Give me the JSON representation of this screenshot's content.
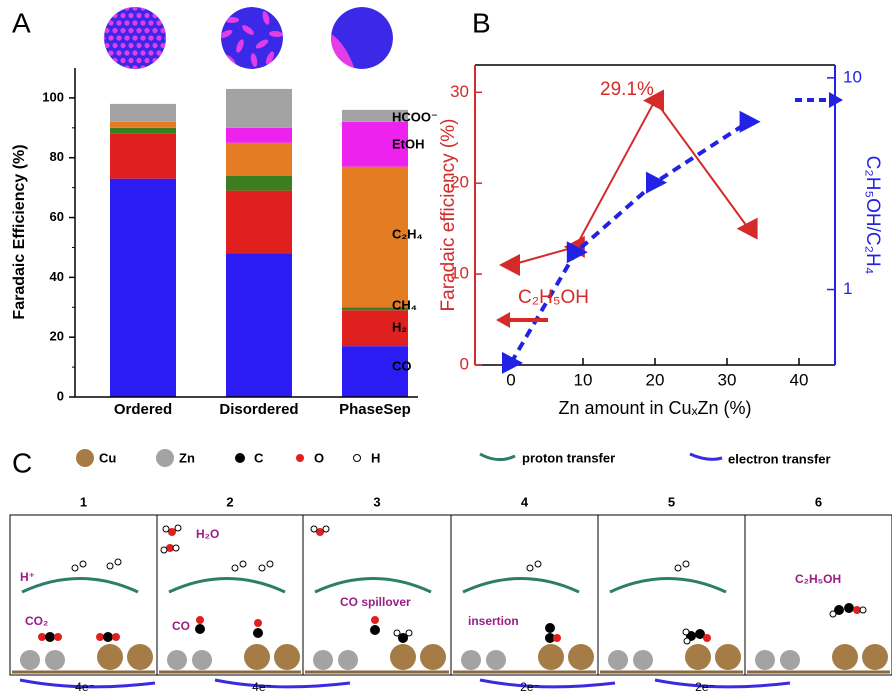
{
  "panel_labels": [
    "A",
    "B",
    "C"
  ],
  "chart_data": [
    {
      "type": "bar",
      "stacked": true,
      "y_label": "Faradaic Efficiency (%)",
      "categories": [
        "Ordered",
        "Disordered",
        "PhaseSep"
      ],
      "series": [
        {
          "name": "CO",
          "color": "#2a1cf2",
          "values": [
            73,
            48,
            17
          ]
        },
        {
          "name": "H₂",
          "color": "#e0201e",
          "values": [
            15,
            21,
            12
          ]
        },
        {
          "name": "CH₄",
          "color": "#3b7d1f",
          "values": [
            2,
            5,
            1
          ]
        },
        {
          "name": "C₂H₄",
          "color": "#e37c22",
          "values": [
            2,
            11,
            47
          ]
        },
        {
          "name": "EtOH",
          "color": "#ee22ee",
          "values": [
            0,
            5,
            15
          ]
        },
        {
          "name": "HCOO⁻",
          "color": "#a3a3a3",
          "values": [
            6,
            13,
            4
          ]
        }
      ],
      "ylim": [
        0,
        110
      ],
      "yticks": [
        0,
        20,
        40,
        60,
        80,
        100
      ]
    },
    {
      "type": "line",
      "x_label": "Zn amount in CuₓZn (%)",
      "y_label": "Faradaic efficiency (%)",
      "y2_label": "C₂H₅OH/C₂H₄",
      "x": [
        0,
        9,
        20,
        33
      ],
      "series": [
        {
          "name": "C₂H₅OH",
          "color": "#d42a2a",
          "values": [
            11,
            13,
            29.1,
            15
          ]
        },
        {
          "name": "C₂H₅OH/C₂H₄",
          "color": "#2222e6",
          "axis": "y2",
          "values": [
            0.45,
            1.5,
            3.2,
            6.2
          ]
        }
      ],
      "annotations": [
        "29.1%"
      ],
      "xlim": [
        -5,
        45
      ],
      "xticks": [
        0,
        10,
        20,
        30,
        40
      ],
      "ylim": [
        0,
        33
      ],
      "yticks": [
        0,
        10,
        20,
        30
      ],
      "y2lim": [
        0.44,
        11.5
      ],
      "y2ticks": [
        1,
        10
      ],
      "y2log": true
    }
  ],
  "diagram": {
    "legend": [
      "Cu",
      "Zn",
      "C",
      "O",
      "H"
    ],
    "transfers": [
      "proton transfer",
      "electron transfer"
    ],
    "steps": [
      "1",
      "2",
      "3",
      "4",
      "5",
      "6"
    ],
    "labels": [
      "H⁺",
      "CO₂",
      "H₂O",
      "CO",
      "CO spillover",
      "insertion",
      "C₂H₅OH"
    ],
    "electrons": [
      "4e⁻",
      "4e⁻",
      "2e⁻",
      "2e⁻"
    ]
  }
}
